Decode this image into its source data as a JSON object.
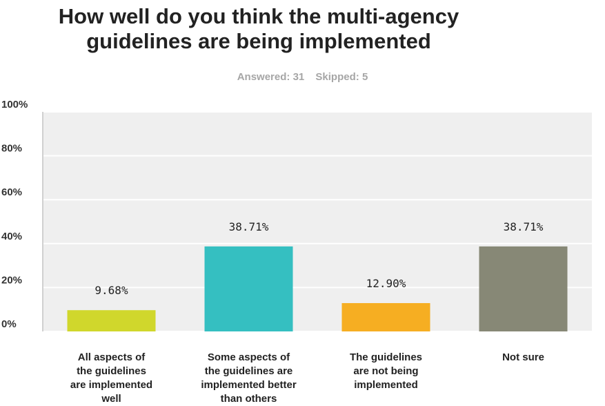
{
  "summary": {
    "answered_label": "Answered:",
    "answered": "31",
    "skipped_label": "Skipped:",
    "skipped": "5"
  },
  "chart_data": {
    "type": "bar",
    "title": "How well do you think the multi-agency\nguidelines are being implemented",
    "categories": [
      "All aspects of the guidelines are implemented well",
      "Some aspects of the guidelines are implemented better than others",
      "The guidelines are not being implemented",
      "Not sure"
    ],
    "category_lines": [
      [
        "All aspects of",
        "the guidelines",
        "are implemented",
        "well"
      ],
      [
        "Some aspects of",
        "the guidelines are",
        "implemented better",
        "than others"
      ],
      [
        "The guidelines",
        "are not being",
        "implemented"
      ],
      [
        "Not sure"
      ]
    ],
    "values": [
      9.68,
      38.71,
      12.9,
      38.71
    ],
    "data_labels": [
      "9.68%",
      "38.71%",
      "12.90%",
      "38.71%"
    ],
    "colors": [
      "#d0d72c",
      "#35bfc1",
      "#f6ae22",
      "#878876"
    ],
    "yticks": [
      0,
      20,
      40,
      60,
      80,
      100
    ],
    "ytick_labels": [
      "0%",
      "20%",
      "40%",
      "60%",
      "80%",
      "100%"
    ],
    "ylim": [
      0,
      100
    ],
    "grid": true,
    "plot_background": "#efefef",
    "xlabel": "",
    "ylabel": ""
  }
}
